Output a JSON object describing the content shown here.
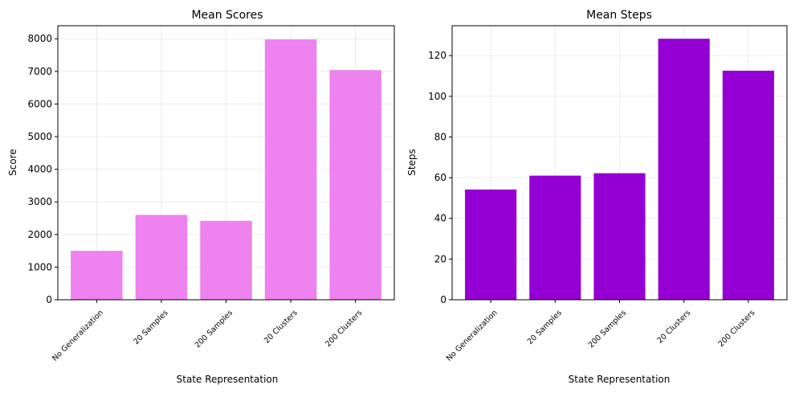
{
  "chart_data": [
    {
      "type": "bar",
      "title": "Mean Scores",
      "xlabel": "State Representation",
      "ylabel": "Score",
      "categories": [
        "No Generalization",
        "20 Samples",
        "200 Samples",
        "20 Clusters",
        "200 Clusters"
      ],
      "values": [
        1500,
        2600,
        2420,
        7980,
        7040
      ],
      "ylim": [
        0,
        8400
      ],
      "yticks": [
        0,
        1000,
        2000,
        3000,
        4000,
        5000,
        6000,
        7000,
        8000
      ],
      "color": "#ee82ee",
      "grid": true
    },
    {
      "type": "bar",
      "title": "Mean Steps",
      "xlabel": "State Representation",
      "ylabel": "Steps",
      "categories": [
        "No Generalization",
        "20 Samples",
        "200 Samples",
        "20 Clusters",
        "200 Clusters"
      ],
      "values": [
        54.2,
        61,
        62.2,
        128.3,
        112.6
      ],
      "ylim": [
        0,
        134.7
      ],
      "yticks": [
        0,
        20,
        40,
        60,
        80,
        100,
        120
      ],
      "color": "#9400d3",
      "grid": true
    }
  ]
}
